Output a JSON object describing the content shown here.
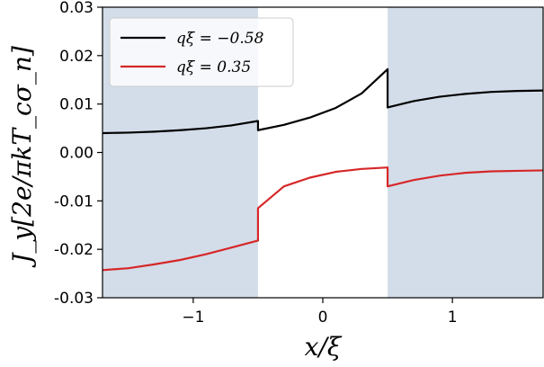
{
  "colors": {
    "shade": "#d3dde9",
    "series_black": "#000000",
    "series_red": "#d62728"
  },
  "chart_data": {
    "type": "line",
    "xlabel": "x/ξ",
    "ylabel": "J_y[2e/πkT_cσ_n]",
    "xlim": [
      -1.7,
      1.7
    ],
    "ylim": [
      -0.03,
      0.03
    ],
    "xticks": [
      -1,
      0,
      1
    ],
    "xtick_labels": [
      "−1",
      "0",
      "1"
    ],
    "yticks": [
      0.03,
      0.02,
      0.01,
      0.0,
      -0.01,
      -0.02,
      -0.03
    ],
    "ytick_labels": [
      "0.03",
      "0.02",
      "0.01",
      "0.00",
      "-0.01",
      "-0.02",
      "-0.03"
    ],
    "shaded_regions": [
      [
        -1.7,
        -0.5
      ],
      [
        0.5,
        1.7
      ]
    ],
    "legend_placement": "top-left",
    "series": [
      {
        "name": "qξ = −0.58",
        "color": "#000000",
        "segments": [
          {
            "x": [
              -1.7,
              -1.5,
              -1.3,
              -1.1,
              -0.9,
              -0.7,
              -0.5
            ],
            "y": [
              0.004,
              0.0041,
              0.0043,
              0.0046,
              0.005,
              0.0056,
              0.0065
            ]
          },
          {
            "x": [
              -0.5,
              -0.3,
              -0.1,
              0.1,
              0.3,
              0.5
            ],
            "y": [
              0.0046,
              0.0057,
              0.0072,
              0.0092,
              0.0122,
              0.0172
            ]
          },
          {
            "x": [
              0.5,
              0.7,
              0.9,
              1.1,
              1.3,
              1.5,
              1.7
            ],
            "y": [
              0.0093,
              0.0106,
              0.0115,
              0.0121,
              0.0125,
              0.0127,
              0.0128
            ]
          }
        ]
      },
      {
        "name": "qξ = 0.35",
        "color": "#d62728",
        "segments": [
          {
            "x": [
              -1.7,
              -1.5,
              -1.3,
              -1.1,
              -0.9,
              -0.7,
              -0.5
            ],
            "y": [
              -0.0243,
              -0.0239,
              -0.0231,
              -0.0222,
              -0.021,
              -0.0196,
              -0.0182
            ]
          },
          {
            "x": [
              -0.5,
              -0.3,
              -0.1,
              0.1,
              0.3,
              0.5
            ],
            "y": [
              -0.0115,
              -0.007,
              -0.0052,
              -0.004,
              -0.0034,
              -0.0031
            ]
          },
          {
            "x": [
              0.5,
              0.7,
              0.9,
              1.1,
              1.3,
              1.5,
              1.7
            ],
            "y": [
              -0.007,
              -0.0057,
              -0.0048,
              -0.0042,
              -0.0039,
              -0.0038,
              -0.0037
            ]
          }
        ]
      }
    ]
  }
}
